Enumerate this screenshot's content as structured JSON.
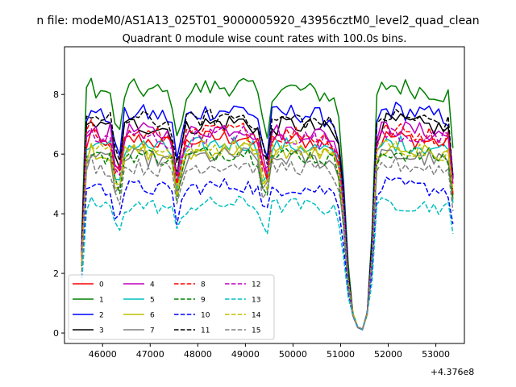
{
  "chart_data": {
    "type": "line",
    "suptitle": "n file: modeM0/AS1A13_025T01_9000005920_43956cztM0_level2_quad_clean",
    "title": "Quadrant 0 module wise count rates with 100.0s bins.",
    "xlabel": "",
    "ylabel": "",
    "offset_text": "+4.376e8",
    "xlim": [
      45200,
      53600
    ],
    "ylim": [
      -0.35,
      9.6
    ],
    "xticks": [
      46000,
      47000,
      48000,
      49000,
      50000,
      51000,
      52000,
      53000
    ],
    "xtick_labels": [
      "46000",
      "47000",
      "48000",
      "49000",
      "50000",
      "51000",
      "52000",
      "53000"
    ],
    "yticks": [
      0,
      2,
      4,
      6,
      8
    ],
    "ytick_labels": [
      "0",
      "2",
      "4",
      "6",
      "8"
    ],
    "grid": false,
    "legend": {
      "location": "lower-left",
      "columns": 4
    },
    "series": [
      {
        "name": "0",
        "color": "#ff0000",
        "dash": "solid",
        "level": 6.5
      },
      {
        "name": "1",
        "color": "#008000",
        "dash": "solid",
        "level": 8.2
      },
      {
        "name": "2",
        "color": "#0000ff",
        "dash": "solid",
        "level": 7.4
      },
      {
        "name": "3",
        "color": "#000000",
        "dash": "solid",
        "level": 7.0
      },
      {
        "name": "4",
        "color": "#bf00bf",
        "dash": "solid",
        "level": 6.8
      },
      {
        "name": "5",
        "color": "#00bfbf",
        "dash": "solid",
        "level": 6.3
      },
      {
        "name": "6",
        "color": "#bfbf00",
        "dash": "solid",
        "level": 6.1
      },
      {
        "name": "7",
        "color": "#808080",
        "dash": "solid",
        "level": 5.9
      },
      {
        "name": "8",
        "color": "#ff0000",
        "dash": "dashed",
        "level": 6.7
      },
      {
        "name": "9",
        "color": "#008000",
        "dash": "dashed",
        "level": 6.0
      },
      {
        "name": "10",
        "color": "#0000ff",
        "dash": "dashed",
        "level": 4.9
      },
      {
        "name": "11",
        "color": "#000000",
        "dash": "dashed",
        "level": 7.2
      },
      {
        "name": "12",
        "color": "#bf00bf",
        "dash": "dashed",
        "level": 6.6
      },
      {
        "name": "13",
        "color": "#00bfbf",
        "dash": "dashed",
        "level": 4.3
      },
      {
        "name": "14",
        "color": "#bfbf00",
        "dash": "dashed",
        "level": 6.2
      },
      {
        "name": "15",
        "color": "#808080",
        "dash": "dashed",
        "level": 5.6
      }
    ],
    "profile": {
      "x": [
        45560,
        45620,
        45700,
        45800,
        46000,
        46150,
        46230,
        46300,
        46400,
        46600,
        47200,
        47450,
        47580,
        47700,
        48000,
        49000,
        49300,
        49420,
        49550,
        50000,
        50800,
        50950,
        51050,
        51200,
        51350,
        51500,
        51620,
        51750,
        51850,
        52000,
        53000,
        53300,
        53380
      ],
      "value": [
        2.6,
        6.0,
        7.2,
        6.9,
        6.6,
        6.7,
        6.9,
        4.0,
        6.6,
        6.8,
        6.7,
        6.6,
        5.0,
        6.6,
        6.8,
        6.9,
        6.6,
        5.0,
        6.7,
        6.8,
        6.6,
        6.2,
        4.6,
        0.9,
        0.2,
        0.1,
        1.2,
        6.4,
        6.8,
        6.9,
        6.7,
        6.6,
        4.5
      ],
      "normalize": 6.8
    }
  }
}
